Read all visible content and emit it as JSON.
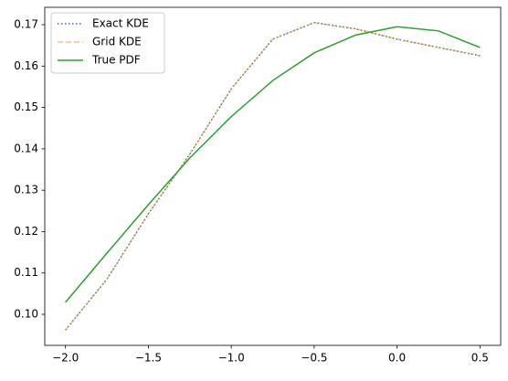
{
  "chart_data": {
    "type": "line",
    "x": [
      -2.0,
      -1.75,
      -1.5,
      -1.25,
      -1.0,
      -0.75,
      -0.5,
      -0.25,
      0.0,
      0.25,
      0.5
    ],
    "series": [
      {
        "name": "Exact KDE",
        "color": "#1f77b4",
        "style": "dotted",
        "values": [
          0.0962,
          0.1085,
          0.1243,
          0.1387,
          0.1545,
          0.1665,
          0.1705,
          0.169,
          0.1665,
          0.1645,
          0.1625
        ]
      },
      {
        "name": "Grid KDE",
        "color": "#ff7f0e",
        "style": "dashed",
        "values": [
          0.0962,
          0.1085,
          0.1243,
          0.1387,
          0.1545,
          0.1665,
          0.1705,
          0.169,
          0.1665,
          0.1645,
          0.1625
        ]
      },
      {
        "name": "True PDF",
        "color": "#2ca02c",
        "style": "solid",
        "values": [
          0.1029,
          0.1148,
          0.1265,
          0.1378,
          0.1478,
          0.1565,
          0.1632,
          0.1675,
          0.1695,
          0.1685,
          0.1645
        ]
      }
    ],
    "xlim": [
      -2.125,
      0.625
    ],
    "ylim": [
      0.0925,
      0.1742
    ],
    "xticks": [
      {
        "value": -2.0,
        "label": "−2.0"
      },
      {
        "value": -1.5,
        "label": "−1.5"
      },
      {
        "value": -1.0,
        "label": "−1.0"
      },
      {
        "value": -0.5,
        "label": "−0.5"
      },
      {
        "value": 0.0,
        "label": "0.0"
      },
      {
        "value": 0.5,
        "label": "0.5"
      }
    ],
    "yticks": [
      {
        "value": 0.1,
        "label": "0.10"
      },
      {
        "value": 0.11,
        "label": "0.11"
      },
      {
        "value": 0.12,
        "label": "0.12"
      },
      {
        "value": 0.13,
        "label": "0.13"
      },
      {
        "value": 0.14,
        "label": "0.14"
      },
      {
        "value": 0.15,
        "label": "0.15"
      },
      {
        "value": 0.16,
        "label": "0.16"
      },
      {
        "value": 0.17,
        "label": "0.17"
      }
    ],
    "legend": "upper left",
    "grid": false
  }
}
